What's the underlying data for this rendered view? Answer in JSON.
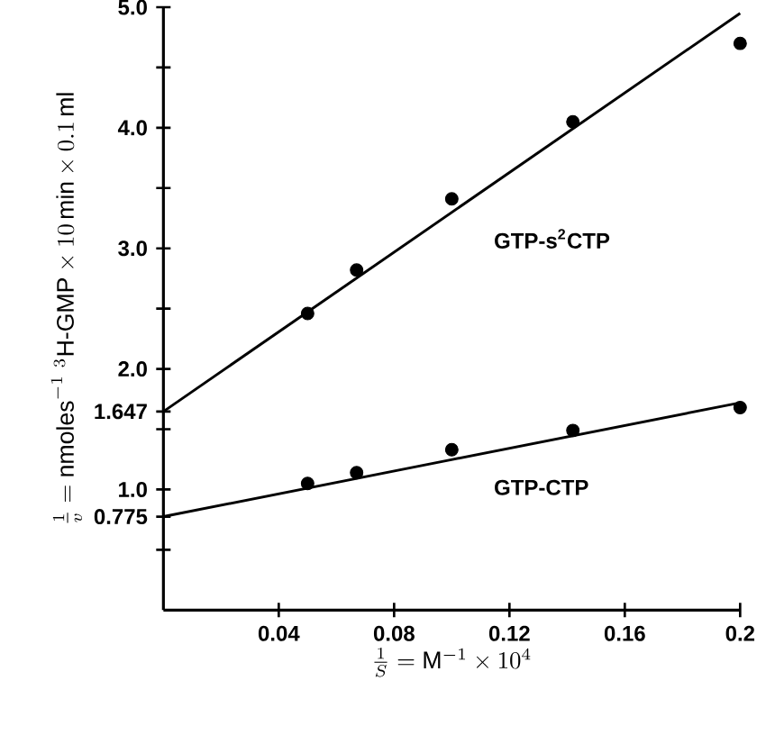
{
  "chart_data": {
    "type": "scatter",
    "xlabel": "\\frac{1}{S}=\\mathrm{M}^{-1}\\times 10^{4}",
    "ylabel": "\\frac{1}{v}=\\mathrm{nmoles}^{-1}\\;{}^{3}\\mathrm{H{\\mbox{-}}GMP}\\times 10\\,\\mathrm{min}\\times 0.1\\,\\mathrm{ml}",
    "xlim": [
      0,
      0.2
    ],
    "ylim": [
      0,
      5.0
    ],
    "xticks": [
      0.04,
      0.08,
      0.12,
      0.16,
      0.2
    ],
    "yticks": [
      {
        "value": 0.5,
        "label": null
      },
      0.775,
      {
        "value": 1,
        "label": "1.0"
      },
      {
        "value": 1.5,
        "label": null
      },
      1.647,
      {
        "value": 2,
        "label": "2.0"
      },
      {
        "value": 2.5,
        "label": null
      },
      {
        "value": 3,
        "label": "3.0"
      },
      {
        "value": 3.5,
        "label": null
      },
      {
        "value": 4,
        "label": "4.0"
      },
      {
        "value": 4.5,
        "label": null
      },
      {
        "value": 5,
        "label": "5.0"
      }
    ],
    "series": [
      {
        "name": "GTP-s$^{2}$CTP",
        "color": "#000000",
        "marker": "circle",
        "x": [
          0.05,
          0.067,
          0.1,
          0.142,
          0.2
        ],
        "values": [
          2.46,
          2.82,
          3.41,
          4.05,
          4.7
        ]
      },
      {
        "name": "GTP-CTP",
        "color": "#000000",
        "marker": "circle",
        "x": [
          0.05,
          0.067,
          0.1,
          0.142,
          0.2
        ],
        "values": [
          1.05,
          1.14,
          1.33,
          1.49,
          1.68
        ]
      },
      {
        "type": "line",
        "color": "#000000",
        "marker": "none",
        "x": [
          0,
          0.2
        ],
        "values": [
          1.647,
          4.95
        ]
      },
      {
        "type": "line",
        "color": "#000000",
        "marker": "none",
        "x": [
          0,
          0.2
        ],
        "values": [
          0.775,
          1.72
        ]
      }
    ]
  }
}
